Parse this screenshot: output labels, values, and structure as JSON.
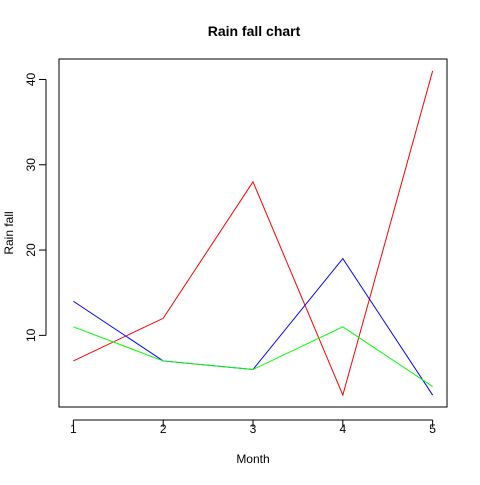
{
  "chart_data": {
    "type": "line",
    "title": "Rain fall chart",
    "xlabel": "Month",
    "ylabel": "Rain fall",
    "x": [
      1,
      2,
      3,
      4,
      5
    ],
    "xticks": [
      "1",
      "2",
      "3",
      "4",
      "5"
    ],
    "yticks": [
      "10",
      "20",
      "30",
      "40"
    ],
    "ylim": [
      1.6,
      42.4
    ],
    "xlim": [
      0.84,
      5.16
    ],
    "grid": false,
    "series": [
      {
        "values": [
          7,
          12,
          28,
          3,
          41
        ],
        "color": "#ff0000"
      },
      {
        "values": [
          14,
          7,
          6,
          19,
          3
        ],
        "color": "#0000ff"
      },
      {
        "values": [
          11,
          7,
          6,
          11,
          4
        ],
        "color": "#00ff00"
      }
    ]
  }
}
